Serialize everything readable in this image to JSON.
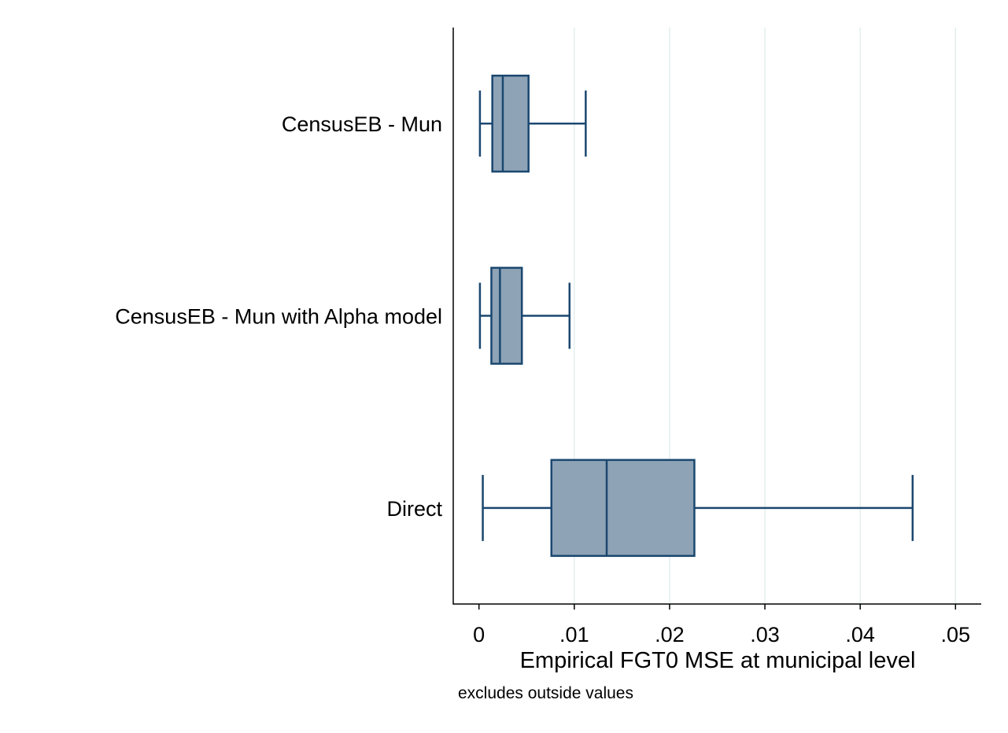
{
  "chart_data": {
    "type": "boxplot",
    "orientation": "horizontal",
    "categories": [
      "CensusEB - Mun",
      "CensusEB - Mun with Alpha model",
      "Direct"
    ],
    "boxes": [
      {
        "category": "CensusEB - Mun",
        "min": 0.0001,
        "q1": 0.0014,
        "median": 0.0025,
        "q3": 0.0052,
        "max": 0.0112
      },
      {
        "category": "CensusEB - Mun with Alpha model",
        "min": 0.0001,
        "q1": 0.0013,
        "median": 0.0022,
        "q3": 0.0045,
        "max": 0.0095
      },
      {
        "category": "Direct",
        "min": 0.0004,
        "q1": 0.0076,
        "median": 0.0134,
        "q3": 0.0226,
        "max": 0.0455
      }
    ],
    "xticks": [
      0,
      0.01,
      0.02,
      0.03,
      0.04,
      0.05
    ],
    "xtick_labels": [
      "0",
      ".01",
      ".02",
      ".03",
      ".04",
      ".05"
    ],
    "xlim": [
      -0.0027,
      0.0527
    ],
    "xlabel": "Empirical FGT0 MSE at municipal level",
    "note": "excludes outside values",
    "grid": "vertical",
    "colors": {
      "box_fill": "#8ea3b6",
      "box_stroke": "#1a476f",
      "grid": "#e4eeee",
      "axis": "#000000"
    }
  }
}
